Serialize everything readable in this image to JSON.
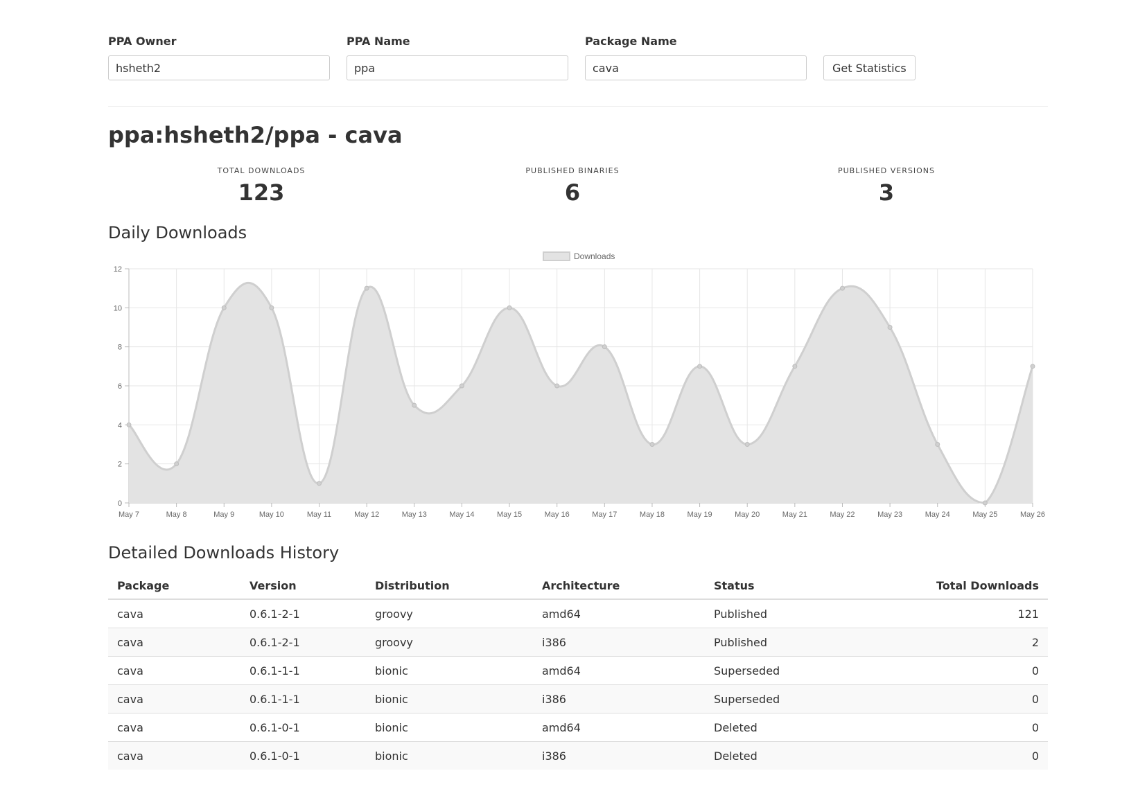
{
  "form": {
    "owner_label": "PPA Owner",
    "owner_value": "hsheth2",
    "name_label": "PPA Name",
    "name_value": "ppa",
    "package_label": "Package Name",
    "package_value": "cava",
    "submit_label": "Get Statistics"
  },
  "page_title": "ppa:hsheth2/ppa - cava",
  "stats": {
    "total_downloads_label": "TOTAL DOWNLOADS",
    "total_downloads_value": "123",
    "published_binaries_label": "PUBLISHED BINARIES",
    "published_binaries_value": "6",
    "published_versions_label": "PUBLISHED VERSIONS",
    "published_versions_value": "3"
  },
  "daily_heading": "Daily Downloads",
  "history_heading": "Detailed Downloads History",
  "chart_data": {
    "type": "area",
    "title": "",
    "xlabel": "",
    "ylabel": "",
    "ylim": [
      0,
      12
    ],
    "yticks": [
      0,
      2,
      4,
      6,
      8,
      10,
      12
    ],
    "grid": true,
    "legend_position": "top-center",
    "categories": [
      "May 7",
      "May 8",
      "May 9",
      "May 10",
      "May 11",
      "May 12",
      "May 13",
      "May 14",
      "May 15",
      "May 16",
      "May 17",
      "May 18",
      "May 19",
      "May 20",
      "May 21",
      "May 22",
      "May 23",
      "May 24",
      "May 25",
      "May 26"
    ],
    "series": [
      {
        "name": "Downloads",
        "values": [
          4,
          2,
          10,
          10,
          1,
          11,
          5,
          6,
          10,
          6,
          8,
          3,
          7,
          3,
          7,
          11,
          9,
          3,
          0,
          7
        ],
        "fill_color": "#e3e3e3",
        "line_color": "#cfcfcf"
      }
    ]
  },
  "table": {
    "headers": [
      "Package",
      "Version",
      "Distribution",
      "Architecture",
      "Status",
      "Total Downloads"
    ],
    "rows": [
      [
        "cava",
        "0.6.1-2-1",
        "groovy",
        "amd64",
        "Published",
        "121"
      ],
      [
        "cava",
        "0.6.1-2-1",
        "groovy",
        "i386",
        "Published",
        "2"
      ],
      [
        "cava",
        "0.6.1-1-1",
        "bionic",
        "amd64",
        "Superseded",
        "0"
      ],
      [
        "cava",
        "0.6.1-1-1",
        "bionic",
        "i386",
        "Superseded",
        "0"
      ],
      [
        "cava",
        "0.6.1-0-1",
        "bionic",
        "amd64",
        "Deleted",
        "0"
      ],
      [
        "cava",
        "0.6.1-0-1",
        "bionic",
        "i386",
        "Deleted",
        "0"
      ]
    ]
  }
}
